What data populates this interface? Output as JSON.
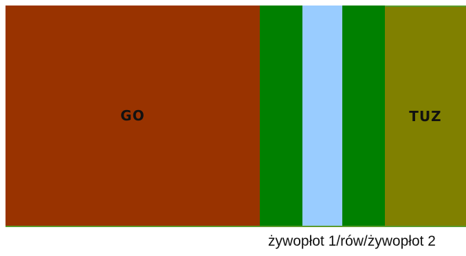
{
  "strips": {
    "go": {
      "label": "GO",
      "color": "#993300"
    },
    "hedge1": {
      "label": "",
      "color": "#008000"
    },
    "ditch": {
      "label": "",
      "color": "#99ccff"
    },
    "hedge2": {
      "label": "",
      "color": "#008000"
    },
    "tuz": {
      "label": "TUZ",
      "color": "#808000"
    }
  },
  "caption": "żywopłot 1/rów/żywopłot 2",
  "border_color": "#5a9a2a"
}
